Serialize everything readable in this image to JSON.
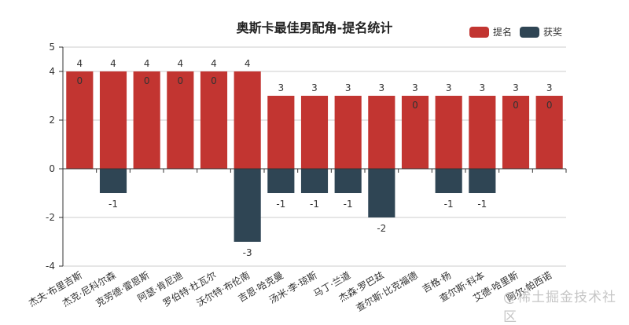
{
  "chart_data": {
    "type": "bar",
    "title": "奥斯卡最佳男配角-提名统计",
    "xlabel": "",
    "ylabel": "",
    "ylim": [
      -4,
      5
    ],
    "yticks": [
      -4,
      -2,
      0,
      2,
      4,
      5
    ],
    "grid": true,
    "legend_position": "top-right",
    "categories": [
      "杰夫·布里吉斯",
      "杰克·尼科尔森",
      "克劳德·雷恩斯",
      "阿瑟·肯尼迪",
      "罗伯特·杜瓦尔",
      "沃尔特·布伦南",
      "吉恩·哈克曼",
      "汤米·李·琼斯",
      "马丁·兰道",
      "杰森·罗巴兹",
      "查尔斯·比克福德",
      "吉格·杨",
      "查尔斯·科本",
      "艾德·哈里斯",
      "阿尔·帕西诺"
    ],
    "series": [
      {
        "name": "提名",
        "color": "#c23531",
        "values": [
          4,
          4,
          4,
          4,
          4,
          4,
          3,
          3,
          3,
          3,
          3,
          3,
          3,
          3,
          3
        ],
        "inner_labels": [
          "0",
          "",
          "0",
          "0",
          "0",
          "",
          "",
          "",
          "",
          "",
          "0",
          "",
          "",
          "0",
          "0"
        ]
      },
      {
        "name": "获奖",
        "color": "#2f4554",
        "values": [
          0,
          -1,
          0,
          0,
          0,
          -3,
          -1,
          -1,
          -1,
          -2,
          0,
          -1,
          -1,
          0,
          0
        ]
      }
    ]
  },
  "legend": {
    "items": [
      {
        "label": "提名",
        "color": "#c23531"
      },
      {
        "label": "获奖",
        "color": "#2f4554"
      }
    ]
  },
  "watermark": "@稀土掘金技术社区"
}
